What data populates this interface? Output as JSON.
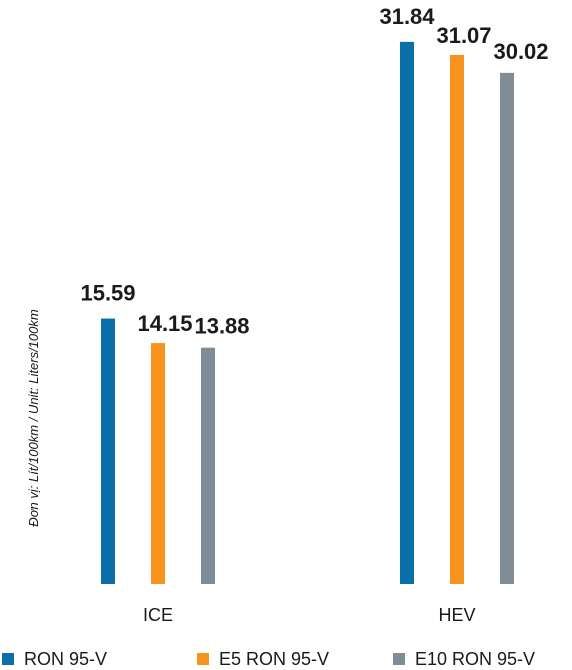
{
  "chart_data": {
    "type": "bar",
    "categories": [
      "ICE",
      "HEV"
    ],
    "series": [
      {
        "name": "RON 95-V",
        "color": "#0a6fa8",
        "values": [
          15.59,
          31.84
        ]
      },
      {
        "name": "E5 RON 95-V",
        "color": "#f7941d",
        "values": [
          14.15,
          31.07
        ]
      },
      {
        "name": "E10 RON 95-V",
        "color": "#808d96",
        "values": [
          13.88,
          30.02
        ]
      }
    ],
    "value_labels": [
      [
        "15.59",
        "31.84"
      ],
      [
        "14.15",
        "31.07"
      ],
      [
        "13.88",
        "30.02"
      ]
    ],
    "ylabel": "Đơn vị: Lít/100km / Unit: Liters/100km",
    "ylim": [
      0,
      33
    ],
    "legend": "bottom",
    "grid": false
  }
}
